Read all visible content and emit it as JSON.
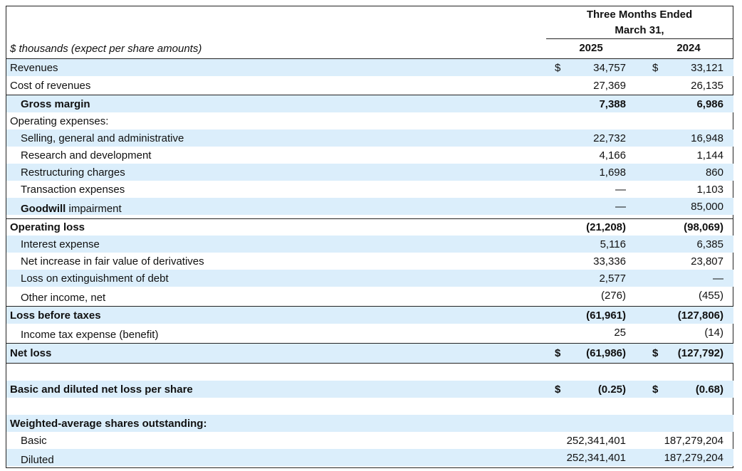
{
  "header": {
    "period_line1": "Three Months Ended",
    "period_line2": "March 31,",
    "year_a": "2025",
    "year_b": "2024",
    "units": "$ thousands (expect per share amounts)"
  },
  "rows": [
    {
      "label": "Revenues",
      "d1": "$",
      "v1": "34,757",
      "d2": "$",
      "v2": "33,121"
    },
    {
      "label": "Cost of revenues",
      "v1": "27,369",
      "v2": "26,135"
    },
    {
      "label": "Gross margin",
      "v1": "7,388",
      "v2": "6,986"
    },
    {
      "label": "Operating expenses:"
    },
    {
      "label": "Selling, general and administrative",
      "v1": "22,732",
      "v2": "16,948"
    },
    {
      "label": "Research and development",
      "v1": "4,166",
      "v2": "1,144"
    },
    {
      "label": "Restructuring charges",
      "v1": "1,698",
      "v2": "860"
    },
    {
      "label": "Transaction expenses",
      "v1": "—",
      "v2": "1,103"
    },
    {
      "label_bold": "Goodwill",
      "label_rest": " impairment",
      "v1": "—",
      "v2": "85,000"
    },
    {
      "label": "Operating loss",
      "v1": "(21,208)",
      "v2": "(98,069)"
    },
    {
      "label": "Interest expense",
      "v1": "5,116",
      "v2": "6,385"
    },
    {
      "label": "Net increase in fair value of derivatives",
      "v1": "33,336",
      "v2": "23,807"
    },
    {
      "label": "Loss on extinguishment of debt",
      "v1": "2,577",
      "v2": "—"
    },
    {
      "label": "Other income, net",
      "v1": "(276)",
      "v2": "(455)"
    },
    {
      "label": "Loss before taxes",
      "v1": "(61,961)",
      "v2": "(127,806)"
    },
    {
      "label": "Income tax expense (benefit)",
      "v1": "25",
      "v2": "(14)"
    },
    {
      "label": "Net loss",
      "d1": "$",
      "v1": "(61,986)",
      "d2": "$",
      "v2": "(127,792)"
    },
    {
      "label": "Basic and diluted net loss per share",
      "d1": "$",
      "v1": "(0.25)",
      "d2": "$",
      "v2": "(0.68)"
    },
    {
      "label": "Weighted-average shares outstanding:"
    },
    {
      "label": "Basic",
      "v1": "252,341,401",
      "v2": "187,279,204"
    },
    {
      "label": "Diluted",
      "v1": "252,341,401",
      "v2": "187,279,204"
    }
  ]
}
